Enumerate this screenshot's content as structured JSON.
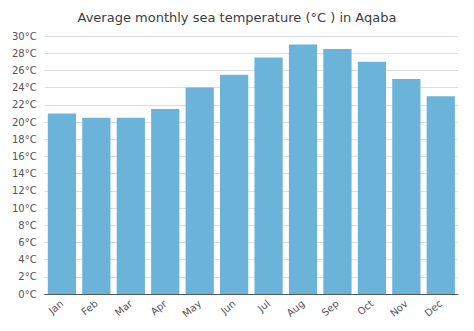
{
  "chart_data": {
    "type": "bar",
    "title": "Average monthly sea temperature (°C ) in Aqaba",
    "categories": [
      "Jan",
      "Feb",
      "Mar",
      "Apr",
      "May",
      "Jun",
      "Jul",
      "Aug",
      "Sep",
      "Oct",
      "Nov",
      "Dec"
    ],
    "values": [
      21,
      20.5,
      20.5,
      21.5,
      24,
      25.5,
      27.5,
      29,
      28.5,
      27,
      25,
      23
    ],
    "color": "#6bb3d9",
    "ylim": [
      0,
      30
    ],
    "yticks": [
      {
        "value": 0,
        "label": "0°C"
      },
      {
        "value": 2,
        "label": "2°C"
      },
      {
        "value": 4,
        "label": "4°C"
      },
      {
        "value": 6,
        "label": "6°C"
      },
      {
        "value": 8,
        "label": "8°C"
      },
      {
        "value": 10,
        "label": "10°C"
      },
      {
        "value": 12,
        "label": "12°C"
      },
      {
        "value": 14,
        "label": "14°C"
      },
      {
        "value": 16,
        "label": "16°C"
      },
      {
        "value": 18,
        "label": "18°C"
      },
      {
        "value": 20,
        "label": "20°C"
      },
      {
        "value": 22,
        "label": "22°C"
      },
      {
        "value": 24,
        "label": "24°C"
      },
      {
        "value": 26,
        "label": "26°C"
      },
      {
        "value": 28,
        "label": "28°C"
      },
      {
        "value": 30,
        "label": "30°C"
      }
    ],
    "grid": true
  }
}
